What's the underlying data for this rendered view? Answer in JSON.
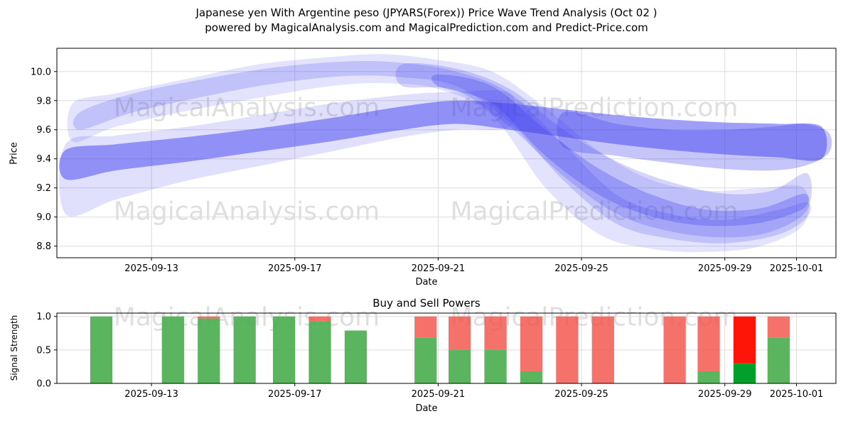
{
  "header": {
    "title_line1": "Japanese yen With Argentine peso (JPYARS(Forex)) Price Wave Trend Analysis (Oct 02 )",
    "title_line2": "powered by MagicalAnalysis.com and MagicalPrediction.com and Predict-Price.com"
  },
  "watermarks": {
    "analysis": "MagicalAnalysis.com",
    "prediction": "MagicalPrediction.com"
  },
  "chart_data": [
    {
      "type": "area",
      "name": "price-wave-trend",
      "ylabel": "Price",
      "xlabel": "Date",
      "ylim": [
        8.72,
        10.16
      ],
      "xlim": [
        10.36,
        32.1
      ],
      "band_color": "#4040f0",
      "grid": true,
      "yticks": [
        {
          "v": 8.8,
          "label": "8.8"
        },
        {
          "v": 9.0,
          "label": "9.0"
        },
        {
          "v": 9.2,
          "label": "9.2"
        },
        {
          "v": 9.4,
          "label": "9.4"
        },
        {
          "v": 9.6,
          "label": "9.6"
        },
        {
          "v": 9.8,
          "label": "9.8"
        },
        {
          "v": 10.0,
          "label": "10.0"
        }
      ],
      "xticks": [
        {
          "x": 13,
          "label": "2025-09-13"
        },
        {
          "x": 17,
          "label": "2025-09-17"
        },
        {
          "x": 21,
          "label": "2025-09-21"
        },
        {
          "x": 25,
          "label": "2025-09-25"
        },
        {
          "x": 29,
          "label": "2025-09-29"
        },
        {
          "x": 31,
          "label": "2025-10-01"
        }
      ],
      "bands": [
        {
          "opacity": 0.15,
          "x": [
            10.8,
            12,
            14,
            16,
            18,
            19.5,
            21,
            22.5,
            24,
            25.5,
            27,
            28.5,
            30,
            31.2
          ],
          "hi": [
            9.78,
            9.85,
            9.95,
            10.05,
            10.1,
            10.12,
            10.08,
            10.0,
            9.75,
            9.45,
            9.25,
            9.18,
            9.2,
            9.2
          ],
          "lo": [
            9.52,
            9.62,
            9.73,
            9.82,
            9.9,
            9.92,
            9.88,
            9.7,
            9.2,
            8.88,
            8.78,
            8.76,
            8.8,
            8.95
          ]
        },
        {
          "opacity": 0.2,
          "x": [
            11,
            12.5,
            14.5,
            16.5,
            18.5,
            20,
            21.5,
            23,
            24.5,
            26,
            27.5,
            29,
            30.5,
            31.3
          ],
          "hi": [
            9.72,
            9.85,
            9.95,
            10.03,
            10.07,
            10.06,
            10.0,
            9.85,
            9.5,
            9.15,
            9.02,
            8.98,
            9.05,
            9.1
          ],
          "lo": [
            9.6,
            9.72,
            9.83,
            9.92,
            9.97,
            9.96,
            9.9,
            9.65,
            9.25,
            8.95,
            8.85,
            8.82,
            8.88,
            9.0
          ]
        },
        {
          "opacity": 0.16,
          "x": [
            10.6,
            12,
            14,
            16,
            18,
            20,
            21.5,
            23
          ],
          "hi": [
            9.5,
            9.56,
            9.62,
            9.7,
            9.78,
            9.84,
            9.86,
            9.85
          ],
          "lo": [
            9.02,
            9.12,
            9.25,
            9.35,
            9.45,
            9.55,
            9.6,
            9.62
          ]
        },
        {
          "opacity": 0.5,
          "x": [
            10.6,
            12,
            14,
            16,
            18,
            20,
            21.5,
            23,
            24.5,
            26,
            27.5,
            29,
            30.5,
            31.7
          ],
          "hi": [
            9.46,
            9.5,
            9.55,
            9.61,
            9.68,
            9.76,
            9.8,
            9.78,
            9.74,
            9.7,
            9.67,
            9.65,
            9.64,
            9.62
          ],
          "lo": [
            9.26,
            9.32,
            9.38,
            9.45,
            9.52,
            9.6,
            9.64,
            9.6,
            9.55,
            9.5,
            9.46,
            9.43,
            9.41,
            9.4
          ]
        },
        {
          "opacity": 0.22,
          "x": [
            20,
            21.5,
            23,
            24.5,
            26,
            27.5,
            29,
            30.3,
            31.3
          ],
          "hi": [
            10.05,
            10.02,
            9.88,
            9.6,
            9.38,
            9.24,
            9.16,
            9.18,
            9.3
          ],
          "lo": [
            9.9,
            9.87,
            9.62,
            9.28,
            9.02,
            8.9,
            8.86,
            8.9,
            9.05
          ]
        },
        {
          "opacity": 0.3,
          "x": [
            21,
            22.5,
            24,
            25.5,
            27,
            28.5,
            30,
            31.2
          ],
          "hi": [
            9.98,
            9.9,
            9.6,
            9.33,
            9.15,
            9.05,
            9.06,
            9.16
          ],
          "lo": [
            9.9,
            9.78,
            9.42,
            9.15,
            9.0,
            8.94,
            8.96,
            9.06
          ]
        },
        {
          "opacity": 0.3,
          "x": [
            24.5,
            26,
            27.5,
            29,
            30.3,
            31.2,
            31.9
          ],
          "hi": [
            9.72,
            9.64,
            9.6,
            9.6,
            9.62,
            9.64,
            9.58
          ],
          "lo": [
            9.48,
            9.42,
            9.37,
            9.33,
            9.32,
            9.35,
            9.44
          ]
        }
      ]
    },
    {
      "type": "bar",
      "name": "buy-sell-powers",
      "title": "Buy and Sell Powers",
      "ylabel": "Signal Strength",
      "xlabel": "Date",
      "ylim": [
        0,
        1.05
      ],
      "xlim": [
        10.36,
        32.1
      ],
      "grid": true,
      "bar_width": 0.62,
      "colors": {
        "buy": "#4caf50",
        "sell": "#f3534b",
        "buy_strong": "#00a02a",
        "sell_strong": "#ff1507"
      },
      "yticks": [
        {
          "v": 0.0,
          "label": "0.0"
        },
        {
          "v": 0.5,
          "label": "0.5"
        },
        {
          "v": 1.0,
          "label": "1.0"
        }
      ],
      "xticks": [
        {
          "x": 13,
          "label": "2025-09-13"
        },
        {
          "x": 17,
          "label": "2025-09-17"
        },
        {
          "x": 21,
          "label": "2025-09-21"
        },
        {
          "x": 25,
          "label": "2025-09-25"
        },
        {
          "x": 29,
          "label": "2025-09-29"
        },
        {
          "x": 31,
          "label": "2025-10-01"
        }
      ],
      "bars": [
        {
          "date": "2025-09-11",
          "x": 11.6,
          "buy": 1.0,
          "sell": 0.0
        },
        {
          "date": "2025-09-13",
          "x": 13.6,
          "buy": 1.0,
          "sell": 0.0
        },
        {
          "date": "2025-09-14",
          "x": 14.6,
          "buy": 0.97,
          "sell": 0.03
        },
        {
          "date": "2025-09-15",
          "x": 15.6,
          "buy": 1.0,
          "sell": 0.0
        },
        {
          "date": "2025-09-16",
          "x": 16.7,
          "buy": 1.0,
          "sell": 0.0
        },
        {
          "date": "2025-09-17",
          "x": 17.7,
          "buy": 0.93,
          "sell": 0.07
        },
        {
          "date": "2025-09-18",
          "x": 18.7,
          "buy": 0.79,
          "sell": 0.0
        },
        {
          "date": "2025-09-20",
          "x": 20.65,
          "buy": 0.68,
          "sell": 0.32
        },
        {
          "date": "2025-09-21",
          "x": 21.6,
          "buy": 0.5,
          "sell": 0.5
        },
        {
          "date": "2025-09-22",
          "x": 22.6,
          "buy": 0.5,
          "sell": 0.5
        },
        {
          "date": "2025-09-23",
          "x": 23.6,
          "buy": 0.18,
          "sell": 0.82
        },
        {
          "date": "2025-09-24",
          "x": 24.6,
          "buy": 0.0,
          "sell": 1.0
        },
        {
          "date": "2025-09-25",
          "x": 25.6,
          "buy": 0.0,
          "sell": 1.0
        },
        {
          "date": "2025-09-27",
          "x": 27.6,
          "buy": 0.0,
          "sell": 1.0
        },
        {
          "date": "2025-09-28",
          "x": 28.55,
          "buy": 0.18,
          "sell": 0.82
        },
        {
          "date": "2025-09-29",
          "x": 29.55,
          "buy": 0.3,
          "sell": 0.7,
          "strong": true
        },
        {
          "date": "2025-09-30",
          "x": 30.5,
          "buy": 0.68,
          "sell": 0.32
        }
      ]
    }
  ]
}
